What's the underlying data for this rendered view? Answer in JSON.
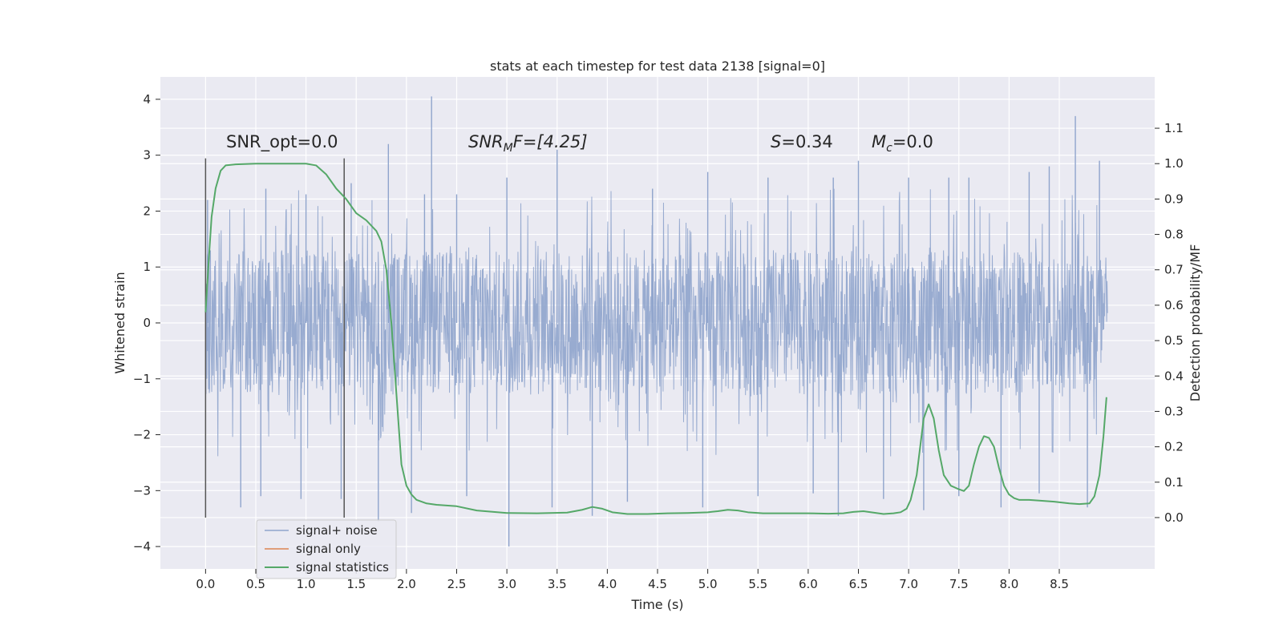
{
  "chart_data": {
    "type": "line",
    "title": "stats at each timestep for test data 2138 [signal=0]",
    "xlabel": "Time (s)",
    "ylabel_left": "Whitened strain",
    "ylabel_right": "Detection probability/MF",
    "xlim": [
      -0.45,
      9.45
    ],
    "ylim_left": [
      -4.4,
      4.4
    ],
    "ylim_right": [
      -0.145,
      1.245
    ],
    "x_ticks": [
      "0.0",
      "0.5",
      "1.0",
      "1.5",
      "2.0",
      "2.5",
      "3.0",
      "3.5",
      "4.0",
      "4.5",
      "5.0",
      "5.5",
      "6.0",
      "6.5",
      "7.0",
      "7.5",
      "8.0",
      "8.5"
    ],
    "y_ticks_left": [
      "4",
      "3",
      "2",
      "1",
      "0",
      "−1",
      "−2",
      "−3",
      "−4"
    ],
    "y_ticks_right": [
      "1.1",
      "1.0",
      "0.9",
      "0.8",
      "0.7",
      "0.6",
      "0.5",
      "0.4",
      "0.3",
      "0.2",
      "0.1",
      "0.0"
    ],
    "grid": true,
    "legend_position": "lower-left",
    "annotations": {
      "snr_opt": "SNR_opt=0.0",
      "snr_mf_main": "SNR",
      "snr_mf_sub": "M",
      "snr_mf_rest": "F=[4.25]",
      "s_main": "S",
      "s_rest": "=0.34",
      "mc_main": "M",
      "mc_sub": "c",
      "mc_rest": "=0.0"
    },
    "vertical_markers": [
      0.0,
      1.38
    ],
    "series": [
      {
        "name": "signal+ noise",
        "axis": "left",
        "color": "#8fa4cc",
        "x_range": [
          0.0,
          8.98
        ],
        "band_typical": [
          -1.3,
          1.3
        ],
        "peaks_up": [
          [
            0.02,
            2.2
          ],
          [
            0.6,
            2.4
          ],
          [
            1.0,
            2.3
          ],
          [
            1.45,
            2.5
          ],
          [
            1.82,
            3.2
          ],
          [
            2.18,
            2.3
          ],
          [
            2.25,
            4.05
          ],
          [
            2.5,
            2.3
          ],
          [
            3.0,
            2.6
          ],
          [
            3.5,
            3.1
          ],
          [
            4.45,
            2.4
          ],
          [
            5.0,
            2.7
          ],
          [
            5.6,
            2.6
          ],
          [
            6.25,
            2.6
          ],
          [
            6.5,
            2.9
          ],
          [
            7.0,
            2.6
          ],
          [
            7.4,
            2.6
          ],
          [
            7.6,
            2.6
          ],
          [
            8.2,
            2.7
          ],
          [
            8.4,
            2.8
          ],
          [
            8.66,
            3.7
          ],
          [
            8.9,
            2.9
          ]
        ],
        "peaks_down": [
          [
            0.35,
            -3.3
          ],
          [
            0.55,
            -3.1
          ],
          [
            0.95,
            -3.15
          ],
          [
            1.35,
            -3.15
          ],
          [
            1.72,
            -3.55
          ],
          [
            2.05,
            -3.4
          ],
          [
            2.6,
            -3.1
          ],
          [
            3.02,
            -4.0
          ],
          [
            3.45,
            -3.3
          ],
          [
            3.85,
            -3.45
          ],
          [
            4.2,
            -3.2
          ],
          [
            4.95,
            -3.3
          ],
          [
            5.5,
            -3.1
          ],
          [
            6.05,
            -3.05
          ],
          [
            6.3,
            -3.45
          ],
          [
            6.75,
            -3.15
          ],
          [
            7.15,
            -3.35
          ],
          [
            7.5,
            -3.1
          ],
          [
            7.92,
            -3.3
          ],
          [
            8.3,
            -3.05
          ],
          [
            8.78,
            -3.3
          ]
        ]
      },
      {
        "name": "signal only",
        "axis": "left",
        "color": "#dd8452",
        "x": [],
        "y": []
      },
      {
        "name": "signal statistics",
        "axis": "right",
        "color": "#55a868",
        "x": [
          0.0,
          0.03,
          0.06,
          0.1,
          0.15,
          0.2,
          0.3,
          0.5,
          0.7,
          0.9,
          1.0,
          1.1,
          1.2,
          1.3,
          1.4,
          1.5,
          1.6,
          1.7,
          1.75,
          1.8,
          1.85,
          1.9,
          1.95,
          2.0,
          2.05,
          2.1,
          2.2,
          2.3,
          2.5,
          2.7,
          3.0,
          3.3,
          3.6,
          3.75,
          3.85,
          3.95,
          4.05,
          4.2,
          4.4,
          4.6,
          4.8,
          5.0,
          5.1,
          5.2,
          5.3,
          5.4,
          5.55,
          5.8,
          6.0,
          6.2,
          6.35,
          6.45,
          6.55,
          6.65,
          6.75,
          6.85,
          6.92,
          6.98,
          7.02,
          7.08,
          7.15,
          7.2,
          7.25,
          7.3,
          7.35,
          7.42,
          7.5,
          7.55,
          7.6,
          7.65,
          7.7,
          7.75,
          7.8,
          7.85,
          7.9,
          7.95,
          8.0,
          8.05,
          8.1,
          8.2,
          8.3,
          8.45,
          8.6,
          8.7,
          8.8,
          8.85,
          8.9,
          8.94,
          8.97
        ],
        "y": [
          0.58,
          0.72,
          0.85,
          0.93,
          0.98,
          0.995,
          0.998,
          1.0,
          1.0,
          1.0,
          1.0,
          0.995,
          0.97,
          0.93,
          0.9,
          0.86,
          0.84,
          0.81,
          0.78,
          0.7,
          0.55,
          0.35,
          0.15,
          0.09,
          0.065,
          0.05,
          0.04,
          0.036,
          0.032,
          0.02,
          0.013,
          0.012,
          0.014,
          0.022,
          0.03,
          0.025,
          0.015,
          0.01,
          0.01,
          0.012,
          0.013,
          0.015,
          0.018,
          0.022,
          0.02,
          0.015,
          0.012,
          0.012,
          0.012,
          0.011,
          0.012,
          0.016,
          0.018,
          0.014,
          0.01,
          0.012,
          0.015,
          0.025,
          0.05,
          0.12,
          0.28,
          0.32,
          0.28,
          0.19,
          0.12,
          0.09,
          0.08,
          0.075,
          0.09,
          0.15,
          0.2,
          0.23,
          0.225,
          0.2,
          0.14,
          0.09,
          0.065,
          0.055,
          0.05,
          0.05,
          0.048,
          0.045,
          0.04,
          0.038,
          0.04,
          0.06,
          0.12,
          0.23,
          0.34
        ]
      }
    ]
  }
}
